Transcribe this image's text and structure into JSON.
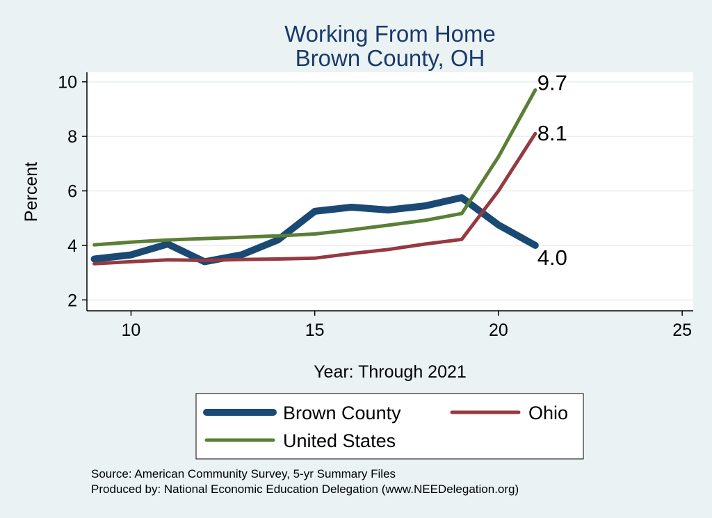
{
  "chart_data": {
    "type": "line",
    "title": [
      "Working From Home",
      "Brown County, OH"
    ],
    "xlabel": "Year: Through 2021",
    "ylabel": "Percent",
    "xlim": [
      8.8,
      25.3
    ],
    "ylim": [
      1.6,
      10.35
    ],
    "xticks": [
      10,
      15,
      20,
      25
    ],
    "yticks": [
      2,
      4,
      6,
      8,
      10
    ],
    "grid": "horizontal",
    "series": [
      {
        "name": "Brown County",
        "color": "#1a4a73",
        "width": 10,
        "x": [
          9,
          10,
          11,
          12,
          13,
          14,
          15,
          16,
          17,
          18,
          19,
          20,
          21
        ],
        "y": [
          3.5,
          3.65,
          4.05,
          3.4,
          3.65,
          4.2,
          5.25,
          5.4,
          5.3,
          5.45,
          5.75,
          4.75,
          4.0
        ],
        "end_label": "4.0"
      },
      {
        "name": "Ohio",
        "color": "#953a40",
        "width": 5,
        "x": [
          9,
          10,
          11,
          12,
          13,
          14,
          15,
          16,
          17,
          18,
          19,
          20,
          21
        ],
        "y": [
          3.33,
          3.4,
          3.47,
          3.45,
          3.48,
          3.5,
          3.53,
          3.7,
          3.85,
          4.05,
          4.22,
          6.0,
          8.1
        ],
        "end_label": "8.1"
      },
      {
        "name": "United States",
        "color": "#5a7f36",
        "width": 5,
        "x": [
          9,
          10,
          11,
          12,
          13,
          14,
          15,
          16,
          17,
          18,
          19,
          20,
          21
        ],
        "y": [
          4.02,
          4.12,
          4.2,
          4.25,
          4.3,
          4.35,
          4.42,
          4.57,
          4.74,
          4.92,
          5.17,
          7.25,
          9.7
        ],
        "end_label": "9.7"
      }
    ]
  },
  "notes": [
    "Source: American Community Survey, 5-yr Summary Files",
    "Produced by: National Economic Education Delegation (www.NEEDelegation.org)"
  ]
}
